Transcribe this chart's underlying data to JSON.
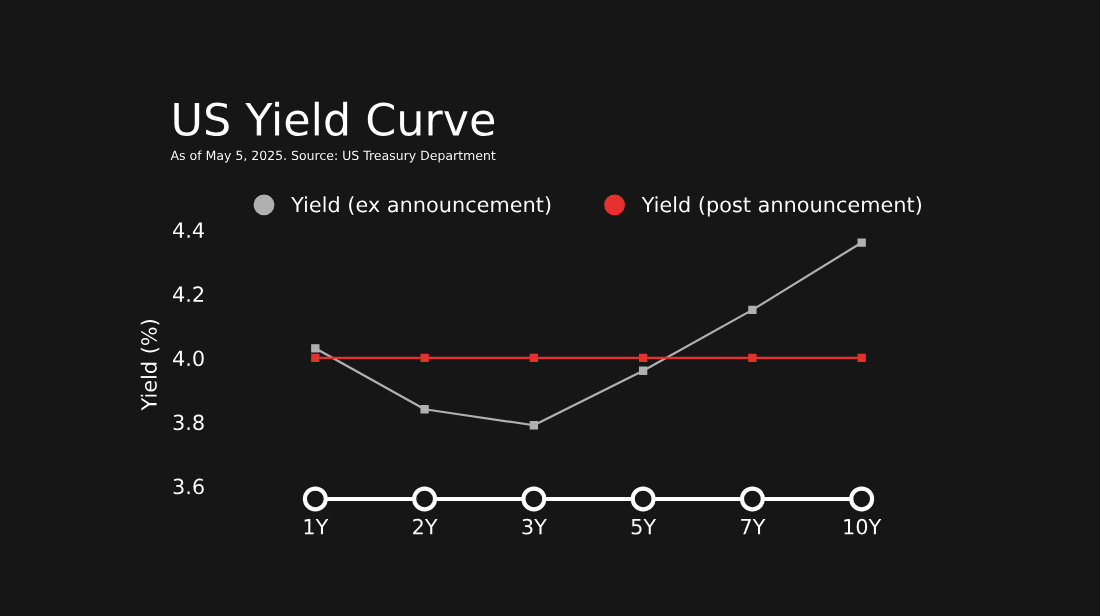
{
  "chart_data": {
    "type": "line",
    "title": "US Yield Curve",
    "subtitle": "As of May 5, 2025. Source: US Treasury Department",
    "ylabel": "Yield (%)",
    "categories": [
      "1Y",
      "2Y",
      "3Y",
      "5Y",
      "7Y",
      "10Y"
    ],
    "series": [
      {
        "name": "Yield (ex announcement)",
        "color": "#b0b0b0",
        "values": [
          4.03,
          3.84,
          3.79,
          3.96,
          4.15,
          4.36
        ]
      },
      {
        "name": "Yield (post announcement)",
        "color": "#e8302e",
        "values": [
          4.0,
          4.0,
          4.0,
          4.0,
          4.0,
          4.0
        ]
      }
    ],
    "ylim": [
      3.56,
      4.4
    ],
    "yticks": [
      3.6,
      3.8,
      {
        "value": 4.0,
        "label": "4.0"
      },
      4.2,
      4.4
    ],
    "grid": false,
    "legend": "top",
    "marker": "square",
    "line_style": "solid"
  }
}
